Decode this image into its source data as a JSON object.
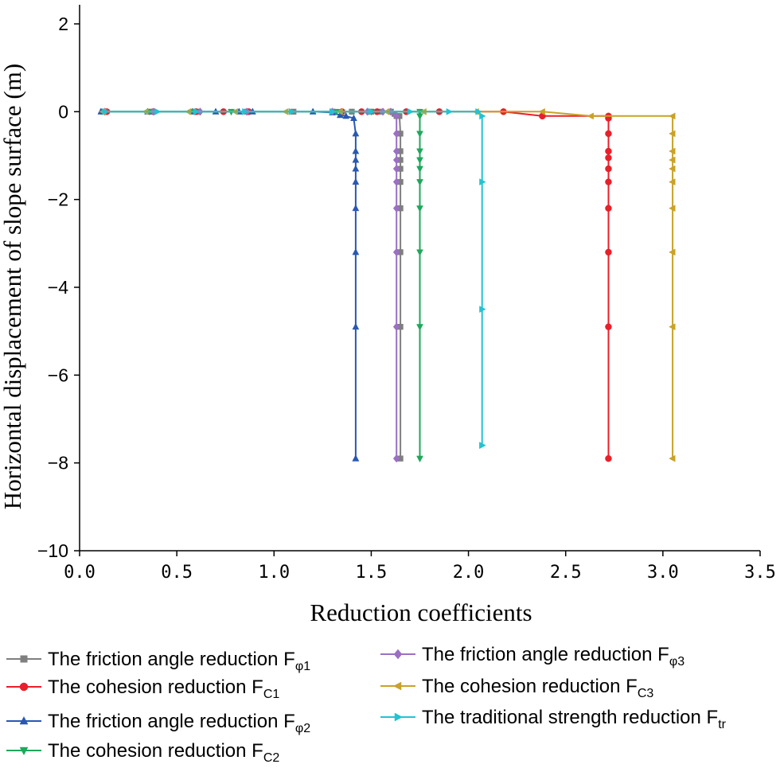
{
  "chart_data": {
    "type": "line",
    "xlabel": "Reduction coefficients",
    "ylabel": "Horizontal displacement of slope surface (m)",
    "xlim": [
      0.0,
      3.5
    ],
    "ylim": [
      -10,
      2
    ],
    "xticks": [
      "0.0",
      "0.5",
      "1.0",
      "1.5",
      "2.0",
      "2.5",
      "3.0",
      "3.5"
    ],
    "xtick_values": [
      0,
      0.5,
      1.0,
      1.5,
      2.0,
      2.5,
      3.0,
      3.5
    ],
    "yticks": [
      "2",
      "0",
      "−2",
      "−4",
      "−6",
      "−8",
      "−10"
    ],
    "ytick_values": [
      2,
      0,
      -2,
      -4,
      -6,
      -8,
      -10
    ],
    "grid": false,
    "legend_position": "bottom",
    "series": [
      {
        "name": "The friction angle reduction Fφ1",
        "legend_main": "The friction angle reduction F",
        "legend_sub": "φ1",
        "color": "#7f7f7f",
        "marker": "square",
        "x": [
          0.12,
          0.37,
          0.61,
          0.86,
          1.1,
          1.3,
          1.4,
          1.5,
          1.55,
          1.6,
          1.62,
          1.63,
          1.645,
          1.65,
          1.65,
          1.65,
          1.65,
          1.65,
          1.65,
          1.65,
          1.65,
          1.65
        ],
        "y": [
          0,
          0,
          0,
          0,
          0,
          0,
          0,
          0,
          0,
          0,
          -0.05,
          -0.1,
          -0.1,
          -0.5,
          -0.9,
          -1.1,
          -1.3,
          -1.6,
          -2.2,
          -3.2,
          -4.9,
          -7.9
        ]
      },
      {
        "name": "The cohesion reduction FC1",
        "legend_main": "The cohesion reduction F",
        "legend_sub": "C1",
        "color": "#e8202a",
        "marker": "circle",
        "x": [
          0.14,
          0.38,
          0.6,
          0.74,
          0.87,
          1.35,
          1.45,
          1.53,
          1.68,
          1.85,
          2.18,
          2.38,
          2.72,
          2.72,
          2.72,
          2.72,
          2.72,
          2.72,
          2.72,
          2.72,
          2.72,
          2.72,
          2.72
        ],
        "y": [
          0,
          0,
          0,
          0,
          0,
          0,
          0,
          0,
          0,
          0,
          0,
          -0.1,
          -0.1,
          -0.15,
          -0.5,
          -0.9,
          -1.05,
          -1.3,
          -1.6,
          -2.2,
          -3.2,
          -4.9,
          -7.9
        ]
      },
      {
        "name": "The friction angle reduction Fφ2",
        "legend_main": "The friction angle reduction F",
        "legend_sub": "φ2",
        "color": "#2858b4",
        "marker": "triangle-up",
        "x": [
          0.11,
          0.35,
          0.58,
          0.7,
          0.82,
          0.89,
          1.2,
          1.3,
          1.34,
          1.37,
          1.41,
          1.42,
          1.42,
          1.42,
          1.42,
          1.42,
          1.42,
          1.42,
          1.42,
          1.42,
          1.42
        ],
        "y": [
          0,
          0,
          0,
          0,
          0,
          0,
          0,
          -0.02,
          -0.08,
          -0.1,
          -0.15,
          -0.5,
          -0.9,
          -1.1,
          -1.3,
          -1.6,
          -2.2,
          -3.2,
          -4.9,
          -7.9,
          -7.9
        ]
      },
      {
        "name": "The cohesion reduction FC2",
        "legend_main": "The cohesion reduction F",
        "legend_sub": "C2",
        "color": "#1fa85a",
        "marker": "triangle-down",
        "x": [
          0.13,
          0.36,
          0.59,
          0.78,
          1.32,
          1.5,
          1.6,
          1.75,
          1.75,
          1.75,
          1.75,
          1.75,
          1.75,
          1.75,
          1.75,
          1.75,
          1.75,
          1.75
        ],
        "y": [
          0,
          0,
          0,
          0,
          0,
          0,
          0,
          0,
          -0.1,
          -0.5,
          -0.9,
          -1.1,
          -1.3,
          -1.6,
          -2.2,
          -3.2,
          -4.9,
          -7.9
        ]
      },
      {
        "name": "The friction angle reduction Fφ3",
        "legend_main": "The friction angle reduction F",
        "legend_sub": "φ3",
        "color": "#9b6fc3",
        "marker": "diamond",
        "x": [
          0.13,
          0.38,
          0.62,
          0.86,
          1.3,
          1.48,
          1.56,
          1.6,
          1.63,
          1.63,
          1.63,
          1.63,
          1.63,
          1.63,
          1.63,
          1.63,
          1.63,
          1.63
        ],
        "y": [
          0,
          0,
          0,
          0,
          0,
          0,
          0,
          0,
          -0.1,
          -0.5,
          -0.9,
          -1.1,
          -1.3,
          -1.6,
          -2.2,
          -3.2,
          -4.9,
          -7.9
        ]
      },
      {
        "name": "The cohesion reduction FC3",
        "legend_main": "The cohesion reduction F",
        "legend_sub": "C3",
        "color": "#c9a227",
        "marker": "triangle-left",
        "x": [
          0.12,
          0.34,
          0.56,
          0.8,
          1.06,
          1.34,
          1.58,
          1.77,
          2.04,
          2.38,
          2.63,
          3.05,
          3.05,
          3.05,
          3.05,
          3.05,
          3.05,
          3.05,
          3.05,
          3.05,
          3.05
        ],
        "y": [
          0,
          0,
          0,
          0,
          0,
          0,
          0,
          0,
          0,
          0,
          -0.1,
          -0.1,
          -0.5,
          -0.9,
          -1.1,
          -1.3,
          -1.6,
          -2.2,
          -3.2,
          -4.9,
          -7.9
        ]
      },
      {
        "name": "The traditional strength reduction Ftr",
        "legend_main": "The traditional strength reduction F",
        "legend_sub": "tr",
        "color": "#22c3d2",
        "marker": "triangle-right",
        "x": [
          0.13,
          0.4,
          0.6,
          0.85,
          1.09,
          1.3,
          1.5,
          1.7,
          1.9,
          2.05,
          2.07,
          2.07,
          2.07,
          2.07,
          2.07
        ],
        "y": [
          0,
          0,
          0,
          0,
          0,
          0,
          0,
          0,
          0,
          0,
          -0.1,
          -1.6,
          -4.5,
          -7.6,
          -7.6
        ]
      }
    ]
  }
}
